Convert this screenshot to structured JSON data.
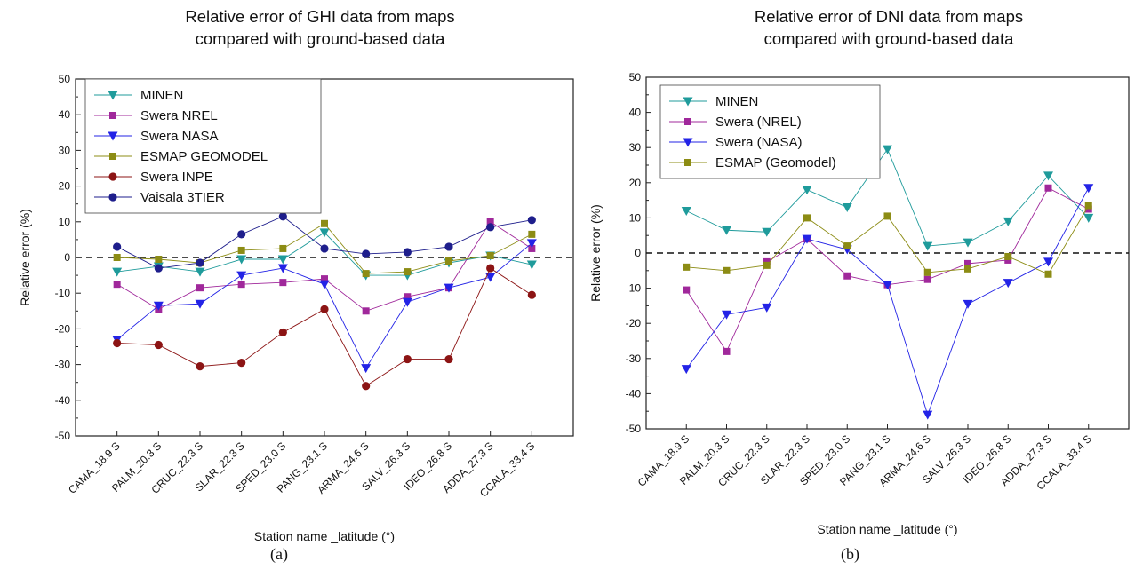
{
  "charts": [
    {
      "title_lines": [
        "Relative error of GHI data from maps",
        "compared with ground-based data"
      ],
      "panel_label": "(a)"
    },
    {
      "title_lines": [
        "Relative error of DNI data from maps",
        "compared with ground-based data"
      ],
      "panel_label": "(b)"
    }
  ],
  "chart_data": [
    {
      "type": "line",
      "title": "Relative error of GHI data from maps compared with ground-based data",
      "xlabel": "Station name _latitude (°)",
      "ylabel": "Relative error (%)",
      "ylim": [
        -50,
        50
      ],
      "yticks": [
        -50,
        -40,
        -30,
        -20,
        -10,
        0,
        10,
        20,
        30,
        40,
        50
      ],
      "grid": false,
      "reference_line": 0,
      "legend_position": "top-left",
      "categories": [
        "CAMA_18.9 S",
        "PALM_20.3 S",
        "CRUC_22.3 S",
        "SLAR_22.3 S",
        "SPED_23.0 S",
        "PANG_23.1 S",
        "ARMA_24.6 S",
        "SALV_26.3 S",
        "IDEO_26.8 S",
        "ADDA_27.3 S",
        "CCALA_33.4 S"
      ],
      "series": [
        {
          "name": "MINEN",
          "color": "#1f9b9b",
          "marker": "triangle-down",
          "values": [
            -4,
            -2.5,
            -4,
            -0.5,
            -0.5,
            7,
            -5,
            -5,
            -1.5,
            0.5,
            -2
          ]
        },
        {
          "name": "Swera NREL",
          "color": "#a0289b",
          "marker": "square",
          "values": [
            -7.5,
            -14.5,
            -8.5,
            -7.5,
            -7,
            -6,
            -15,
            -11,
            -8.5,
            10,
            2.5
          ]
        },
        {
          "name": "Swera NASA",
          "color": "#2323e6",
          "marker": "triangle-down",
          "values": [
            -23,
            -13.5,
            -13,
            -5,
            -3,
            -7.5,
            -31,
            -12.5,
            -8.5,
            -5.5,
            4
          ]
        },
        {
          "name": "ESMAP GEOMODEL",
          "color": "#8c8c14",
          "marker": "square",
          "values": [
            0,
            -0.5,
            -1.5,
            2,
            2.5,
            9.5,
            -4.5,
            -4,
            -1,
            0.5,
            6.5
          ]
        },
        {
          "name": "Swera INPE",
          "color": "#8c1414",
          "marker": "circle",
          "values": [
            -24,
            -24.5,
            -30.5,
            -29.5,
            -21,
            -14.5,
            -36,
            -28.5,
            -28.5,
            -3,
            -10.5
          ]
        },
        {
          "name": "Vaisala 3TIER",
          "color": "#1e1e8c",
          "marker": "circle",
          "values": [
            3,
            -3,
            -1.5,
            6.5,
            11.5,
            2.5,
            1,
            1.5,
            3,
            8.5,
            10.5
          ]
        }
      ]
    },
    {
      "type": "line",
      "title": "Relative error of DNI data from maps compared with ground-based data",
      "xlabel": "Station name _latitude (°)",
      "ylabel": "Relative error (%)",
      "ylim": [
        -50,
        50
      ],
      "yticks": [
        -50,
        -40,
        -30,
        -20,
        -10,
        0,
        10,
        20,
        30,
        40,
        50
      ],
      "grid": false,
      "reference_line": 0,
      "legend_position": "top-left",
      "categories": [
        "CAMA_18.9 S",
        "PALM_20.3 S",
        "CRUC_22.3 S",
        "SLAR_22.3 S",
        "SPED_23.0 S",
        "PANG_23.1 S",
        "ARMA_24.6 S",
        "SALV_26.3 S",
        "IDEO_26.8 S",
        "ADDA_27.3 S",
        "CCALA_33.4 S"
      ],
      "series": [
        {
          "name": "MINEN",
          "color": "#1f9b9b",
          "marker": "triangle-down",
          "values": [
            12,
            6.5,
            6,
            18,
            13,
            29.5,
            2,
            3,
            9,
            22,
            10
          ]
        },
        {
          "name": "Swera (NREL)",
          "color": "#a0289b",
          "marker": "square",
          "values": [
            -10.5,
            -28,
            -2.5,
            4,
            -6.5,
            -9,
            -7.5,
            -3,
            -2,
            18.5,
            12.5
          ]
        },
        {
          "name": "Swera (NASA)",
          "color": "#2323e6",
          "marker": "triangle-down",
          "values": [
            -33,
            -17.5,
            -15.5,
            4,
            1,
            -9,
            -46,
            -14.5,
            -8.5,
            -2.5,
            18.5
          ]
        },
        {
          "name": "ESMAP (Geomodel)",
          "color": "#8c8c14",
          "marker": "square",
          "values": [
            -4,
            -5,
            -3.5,
            10,
            2,
            10.5,
            -5.5,
            -4.5,
            -1,
            -6,
            13.5
          ]
        }
      ]
    }
  ]
}
